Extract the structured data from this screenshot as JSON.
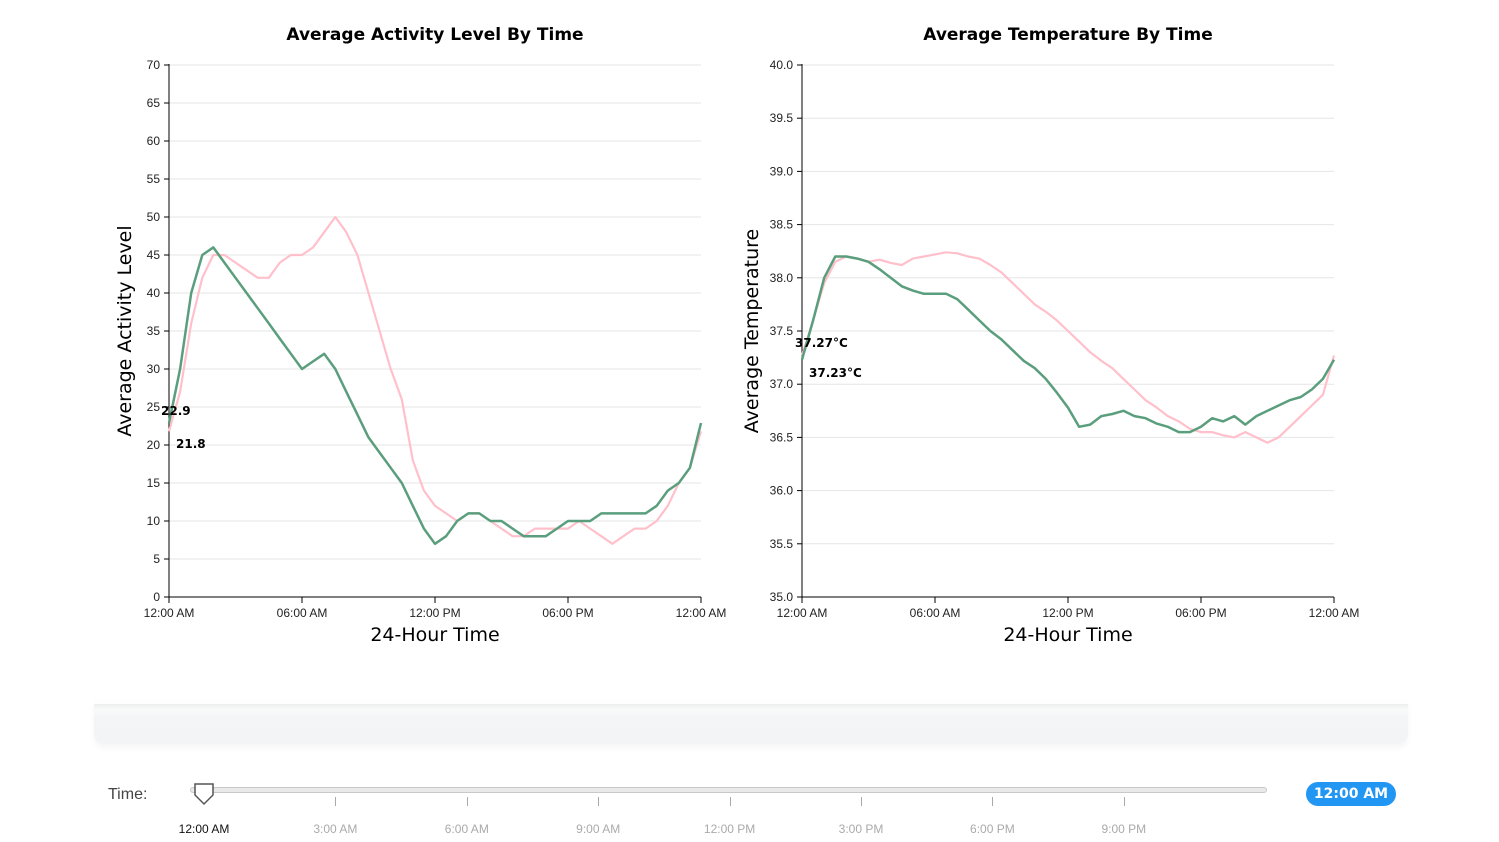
{
  "charts": {
    "activity": {
      "title": "Average Activity Level By Time",
      "xlabel": "24-Hour Time",
      "ylabel": "Average Activity Level",
      "y_ticks": [
        "0",
        "5",
        "10",
        "15",
        "20",
        "25",
        "30",
        "35",
        "40",
        "45",
        "50",
        "55",
        "60",
        "65",
        "70"
      ],
      "x_ticks": [
        "12:00 AM",
        "06:00 AM",
        "12:00 PM",
        "06:00 PM",
        "12:00 AM"
      ],
      "value_labels": [
        "22.9",
        "21.8"
      ]
    },
    "temperature": {
      "title": "Average Temperature By Time",
      "xlabel": "24-Hour Time",
      "ylabel": "Average Temperature",
      "y_ticks": [
        "35.0",
        "35.5",
        "36.0",
        "36.5",
        "37.0",
        "37.5",
        "38.0",
        "38.5",
        "39.0",
        "39.5",
        "40.0"
      ],
      "x_ticks": [
        "12:00 AM",
        "06:00 AM",
        "12:00 PM",
        "06:00 PM",
        "12:00 AM"
      ],
      "value_labels": [
        "37.27°C",
        "37.23°C"
      ]
    }
  },
  "slider": {
    "label": "Time:",
    "value": "12:00 AM",
    "fraction": 0,
    "tick_labels": [
      "12:00 AM",
      "3:00 AM",
      "6:00 AM",
      "9:00 AM",
      "12:00 PM",
      "3:00 PM",
      "6:00 PM",
      "9:00 PM"
    ]
  },
  "chart_data": [
    {
      "type": "line",
      "title": "Average Activity Level By Time",
      "xlabel": "24-Hour Time",
      "ylabel": "Average Activity Level",
      "x_unit": "hours",
      "xlim": [
        0,
        24
      ],
      "ylim": [
        0,
        70
      ],
      "grid": true,
      "series": [
        {
          "color": "#ffc0cb",
          "x": [
            0,
            0.5,
            1,
            1.5,
            2,
            2.5,
            3,
            3.5,
            4,
            4.5,
            5,
            5.5,
            6,
            6.5,
            7,
            7.5,
            8,
            8.5,
            9,
            9.5,
            10,
            10.5,
            11,
            11.5,
            12,
            12.5,
            13,
            13.5,
            14,
            14.5,
            15,
            15.5,
            16,
            16.5,
            17,
            17.5,
            18,
            18.5,
            19,
            19.5,
            20,
            20.5,
            21,
            21.5,
            22,
            22.5,
            23,
            23.5,
            24
          ],
          "y": [
            21.8,
            27,
            36,
            42,
            45,
            45,
            44,
            43,
            42,
            42,
            44,
            45,
            45,
            46,
            48,
            50,
            48,
            45,
            40,
            35,
            30,
            26,
            18,
            14,
            12,
            11,
            10,
            11,
            11,
            10,
            9,
            8,
            8,
            9,
            9,
            9,
            9,
            10,
            9,
            8,
            7,
            8,
            9,
            9,
            10,
            12,
            15,
            17,
            21.8
          ]
        },
        {
          "color": "#5a9e7d",
          "x": [
            0,
            0.5,
            1,
            1.5,
            2,
            2.5,
            3,
            3.5,
            4,
            4.5,
            5,
            5.5,
            6,
            6.5,
            7,
            7.5,
            8,
            8.5,
            9,
            9.5,
            10,
            10.5,
            11,
            11.5,
            12,
            12.5,
            13,
            13.5,
            14,
            14.5,
            15,
            15.5,
            16,
            16.5,
            17,
            17.5,
            18,
            18.5,
            19,
            19.5,
            20,
            20.5,
            21,
            21.5,
            22,
            22.5,
            23,
            23.5,
            24
          ],
          "y": [
            22.9,
            30,
            40,
            45,
            46,
            44,
            42,
            40,
            38,
            36,
            34,
            32,
            30,
            31,
            32,
            30,
            27,
            24,
            21,
            19,
            17,
            15,
            12,
            9,
            7,
            8,
            10,
            11,
            11,
            10,
            10,
            9,
            8,
            8,
            8,
            9,
            10,
            10,
            10,
            11,
            11,
            11,
            11,
            11,
            12,
            14,
            15,
            17,
            22.9
          ]
        }
      ]
    },
    {
      "type": "line",
      "title": "Average Temperature By Time",
      "xlabel": "24-Hour Time",
      "ylabel": "Average Temperature",
      "x_unit": "hours",
      "xlim": [
        0,
        24
      ],
      "ylim": [
        35.0,
        40.0
      ],
      "grid": true,
      "series": [
        {
          "color": "#ffc0cb",
          "x": [
            0,
            0.5,
            1,
            1.5,
            2,
            2.5,
            3,
            3.5,
            4,
            4.5,
            5,
            5.5,
            6,
            6.5,
            7,
            7.5,
            8,
            8.5,
            9,
            9.5,
            10,
            10.5,
            11,
            11.5,
            12,
            12.5,
            13,
            13.5,
            14,
            14.5,
            15,
            15.5,
            16,
            16.5,
            17,
            17.5,
            18,
            18.5,
            19,
            19.5,
            20,
            20.5,
            21,
            21.5,
            22,
            22.5,
            23,
            23.5,
            24
          ],
          "y": [
            37.27,
            37.6,
            37.95,
            38.15,
            38.2,
            38.18,
            38.15,
            38.17,
            38.14,
            38.12,
            38.18,
            38.2,
            38.22,
            38.24,
            38.23,
            38.2,
            38.18,
            38.12,
            38.05,
            37.95,
            37.85,
            37.75,
            37.68,
            37.6,
            37.5,
            37.4,
            37.3,
            37.22,
            37.15,
            37.05,
            36.95,
            36.85,
            36.78,
            36.7,
            36.65,
            36.58,
            36.55,
            36.55,
            36.52,
            36.5,
            36.55,
            36.5,
            36.45,
            36.5,
            36.6,
            36.7,
            36.8,
            36.9,
            37.27
          ]
        },
        {
          "color": "#5a9e7d",
          "x": [
            0,
            0.5,
            1,
            1.5,
            2,
            2.5,
            3,
            3.5,
            4,
            4.5,
            5,
            5.5,
            6,
            6.5,
            7,
            7.5,
            8,
            8.5,
            9,
            9.5,
            10,
            10.5,
            11,
            11.5,
            12,
            12.5,
            13,
            13.5,
            14,
            14.5,
            15,
            15.5,
            16,
            16.5,
            17,
            17.5,
            18,
            18.5,
            19,
            19.5,
            20,
            20.5,
            21,
            21.5,
            22,
            22.5,
            23,
            23.5,
            24
          ],
          "y": [
            37.23,
            37.6,
            38.0,
            38.2,
            38.2,
            38.18,
            38.15,
            38.08,
            38.0,
            37.92,
            37.88,
            37.85,
            37.85,
            37.85,
            37.8,
            37.7,
            37.6,
            37.5,
            37.42,
            37.32,
            37.22,
            37.15,
            37.05,
            36.92,
            36.78,
            36.6,
            36.62,
            36.7,
            36.72,
            36.75,
            36.7,
            36.68,
            36.63,
            36.6,
            36.55,
            36.55,
            36.6,
            36.68,
            36.65,
            36.7,
            36.62,
            36.7,
            36.75,
            36.8,
            36.85,
            36.88,
            36.95,
            37.05,
            37.23
          ]
        }
      ]
    }
  ]
}
